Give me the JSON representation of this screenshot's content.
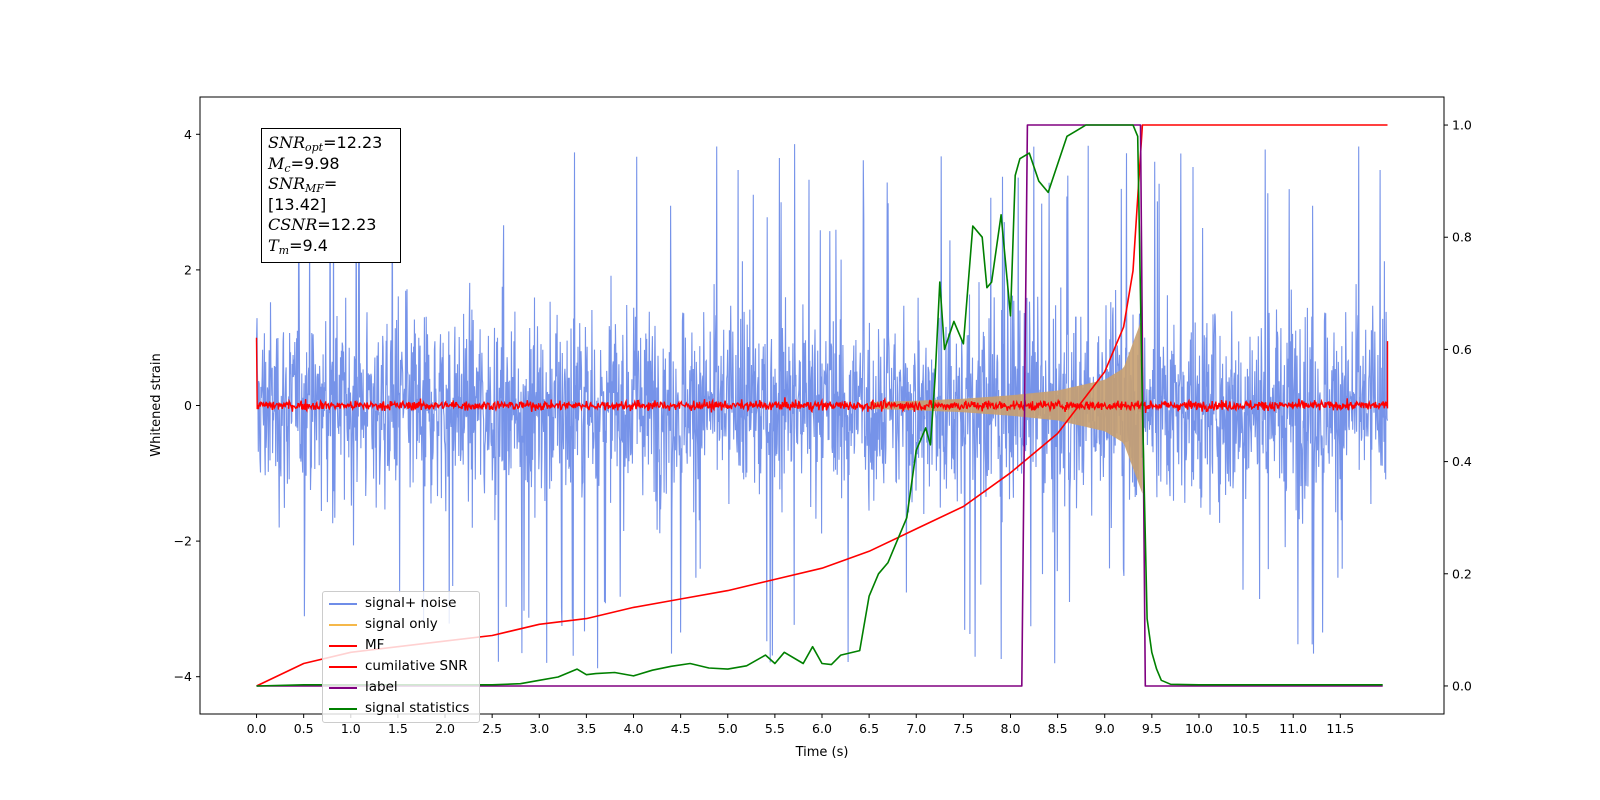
{
  "chart_data": {
    "type": "line",
    "xlabel": "Time (s)",
    "ylabel": "Whitened strain",
    "xlim": [
      -0.6,
      12.6
    ],
    "ylim": [
      -4.55,
      4.55
    ],
    "y2lim": [
      -0.05,
      1.05
    ],
    "x_ticks": [
      "0.0",
      "0.5",
      "1.0",
      "1.5",
      "2.0",
      "2.5",
      "3.0",
      "3.5",
      "4.0",
      "4.5",
      "5.0",
      "5.5",
      "6.0",
      "6.5",
      "7.0",
      "7.5",
      "8.0",
      "8.5",
      "9.0",
      "9.5",
      "10.0",
      "10.5",
      "11.0",
      "11.5"
    ],
    "y_ticks": [
      "4",
      "2",
      "0",
      "−2",
      "−4"
    ],
    "y2_ticks": [
      "1.0",
      "0.8",
      "0.6",
      "0.4",
      "0.2",
      "0.0"
    ],
    "grid": false,
    "legend_position": "lower-left",
    "annotation": {
      "lines": [
        {
          "base": "SNR",
          "sub": "opt",
          "text": "=12.23"
        },
        {
          "base": "M",
          "sub": "c",
          "text": "=9.98"
        },
        {
          "base": "SNR",
          "sub": "MF",
          "text": "=[13.42]"
        },
        {
          "base": "CSNR",
          "sub": "",
          "text": "=12.23"
        },
        {
          "base": "T",
          "sub": "m",
          "text": "=9.4"
        }
      ]
    },
    "series": [
      {
        "name": "signal+ noise",
        "color": "#6f8de8",
        "axis": "left",
        "description": "noise band approx ±2.5 with spikes to ±4",
        "x_range": [
          0.0,
          12.0
        ]
      },
      {
        "name": "signal only",
        "color": "#f5b84a",
        "axis": "left",
        "x_range": [
          0.0,
          9.4
        ],
        "amplitude_envelope": {
          "x": [
            6.5,
            7.0,
            7.5,
            8.0,
            8.5,
            9.0,
            9.2,
            9.4
          ],
          "y": [
            0.05,
            0.07,
            0.1,
            0.15,
            0.22,
            0.38,
            0.55,
            1.3
          ]
        }
      },
      {
        "name": "MF",
        "color": "#ff0000",
        "axis": "left",
        "description": "flat near 0 with small noise, spike 1.0 at start",
        "x_range": [
          0.0,
          12.0
        ]
      },
      {
        "name": "cumilative SNR",
        "color": "#ff0000",
        "axis": "right",
        "x": [
          0.0,
          0.5,
          1.0,
          1.5,
          2.0,
          2.5,
          3.0,
          3.5,
          4.0,
          4.5,
          5.0,
          5.5,
          6.0,
          6.5,
          7.0,
          7.5,
          8.0,
          8.5,
          9.0,
          9.2,
          9.3,
          9.4,
          9.5,
          12.0
        ],
        "y": [
          0.0,
          0.04,
          0.06,
          0.07,
          0.08,
          0.09,
          0.11,
          0.12,
          0.14,
          0.155,
          0.17,
          0.19,
          0.21,
          0.24,
          0.28,
          0.32,
          0.38,
          0.45,
          0.56,
          0.64,
          0.74,
          1.0,
          1.0,
          1.0
        ]
      },
      {
        "name": "label",
        "color": "#800080",
        "axis": "right",
        "x": [
          0.0,
          8.12,
          8.18,
          9.38,
          9.43,
          11.95
        ],
        "y": [
          0.0,
          0.0,
          1.0,
          1.0,
          0.0,
          0.0
        ]
      },
      {
        "name": "signal statistics",
        "color": "#008000",
        "axis": "right",
        "x": [
          0.0,
          0.5,
          1.0,
          1.5,
          2.0,
          2.5,
          2.8,
          3.0,
          3.2,
          3.4,
          3.5,
          3.6,
          3.8,
          4.0,
          4.2,
          4.4,
          4.6,
          4.8,
          5.0,
          5.2,
          5.4,
          5.5,
          5.6,
          5.8,
          5.9,
          6.0,
          6.1,
          6.2,
          6.4,
          6.5,
          6.6,
          6.7,
          6.8,
          6.9,
          7.0,
          7.1,
          7.15,
          7.2,
          7.25,
          7.3,
          7.4,
          7.5,
          7.6,
          7.7,
          7.75,
          7.8,
          7.9,
          8.0,
          8.05,
          8.1,
          8.2,
          8.3,
          8.4,
          8.5,
          8.6,
          8.7,
          8.8,
          9.0,
          9.2,
          9.3,
          9.35,
          9.4,
          9.45,
          9.5,
          9.55,
          9.6,
          9.7,
          10.0,
          11.0,
          11.95
        ],
        "y": [
          0.0,
          0.002,
          0.002,
          0.002,
          0.002,
          0.002,
          0.004,
          0.01,
          0.016,
          0.03,
          0.02,
          0.022,
          0.024,
          0.018,
          0.028,
          0.035,
          0.04,
          0.032,
          0.03,
          0.036,
          0.055,
          0.04,
          0.06,
          0.04,
          0.07,
          0.04,
          0.038,
          0.055,
          0.063,
          0.16,
          0.2,
          0.22,
          0.26,
          0.3,
          0.42,
          0.46,
          0.43,
          0.55,
          0.72,
          0.6,
          0.65,
          0.61,
          0.82,
          0.8,
          0.71,
          0.72,
          0.84,
          0.66,
          0.91,
          0.94,
          0.95,
          0.9,
          0.88,
          0.93,
          0.98,
          0.99,
          1.0,
          1.0,
          1.0,
          1.0,
          0.98,
          0.5,
          0.12,
          0.06,
          0.03,
          0.01,
          0.003,
          0.002,
          0.002,
          0.002
        ]
      }
    ]
  }
}
